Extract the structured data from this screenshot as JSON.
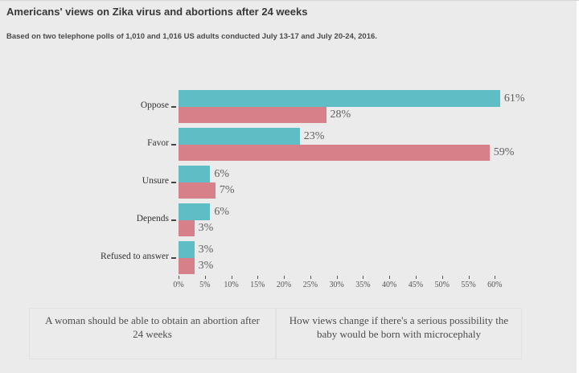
{
  "header": {
    "title": "Americans' views on Zika virus and abortions after 24 weeks",
    "subtitle": "Based on two telephone polls of 1,010 and 1,016 US adults conducted July 13-17 and July 20-24, 2016."
  },
  "chart_data": {
    "type": "bar",
    "orientation": "horizontal",
    "title": "Americans' views on Zika virus and abortions after 24 weeks",
    "subtitle": "Based on two telephone polls of 1,010 and 1,016 US adults conducted July 13-17 and July 20-24, 2016.",
    "categories": [
      "Oppose",
      "Favor",
      "Unsure",
      "Depends",
      "Refused to answer"
    ],
    "series": [
      {
        "name": "A woman should be able to obtain an abortion after 24 weeks",
        "color": "#5fbdc6",
        "values": [
          61,
          23,
          6,
          6,
          3
        ]
      },
      {
        "name": "How views change if there's a serious possibility the baby would be born with microcephaly",
        "color": "#d7808a",
        "values": [
          28,
          59,
          7,
          3,
          3
        ]
      }
    ],
    "value_suffix": "%",
    "xlim": [
      0,
      61
    ],
    "x_tick_step": 5,
    "x_tick_labels": [
      "0%",
      "5%",
      "10%",
      "15%",
      "20%",
      "25%",
      "30%",
      "35%",
      "40%",
      "45%",
      "50%",
      "55%",
      "60%"
    ],
    "grid": false,
    "legend_position": "bottom"
  },
  "colors": {
    "background": "#ebebeb",
    "series_teal": "#5fbdc6",
    "series_rose": "#d7808a",
    "text_dark": "#383838",
    "text_value": "#5f5f5f"
  }
}
